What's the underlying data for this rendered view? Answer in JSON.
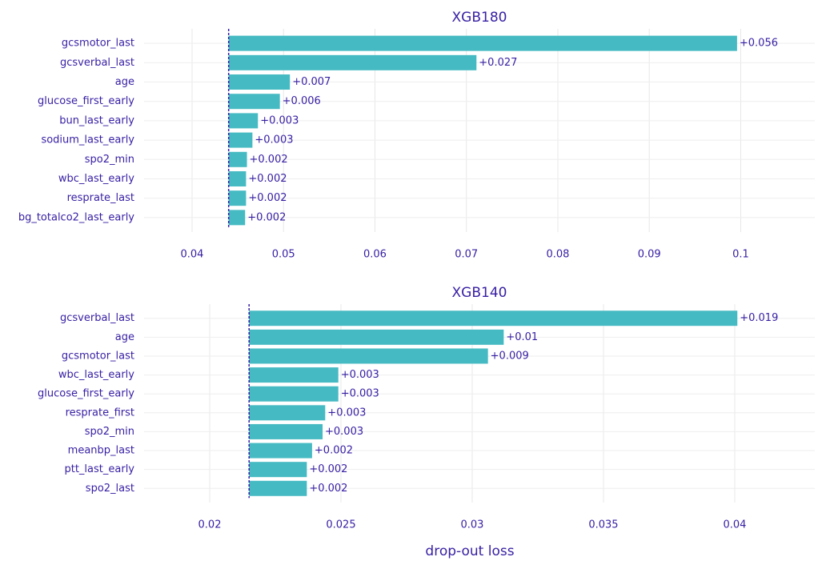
{
  "chart_data": [
    {
      "type": "bar",
      "title": "XGB180",
      "color": "#46bac2",
      "categories": [
        "gcsmotor_last",
        "gcsverbal_last",
        "age",
        "glucose_first_early",
        "bun_last_early",
        "sodium_last_early",
        "spo2_min",
        "wbc_last_early",
        "resprate_last",
        "bg_totalco2_last_early"
      ],
      "values": [
        0.0556,
        0.0271,
        0.0067,
        0.0056,
        0.0032,
        0.0026,
        0.002,
        0.0019,
        0.0019,
        0.0018
      ],
      "value_labels": [
        "+0.056",
        "+0.027",
        "+0.007",
        "+0.006",
        "+0.003",
        "+0.003",
        "+0.002",
        "+0.002",
        "+0.002",
        "+0.002"
      ],
      "baseline": 0.044,
      "xlim": [
        0.03475,
        0.1081
      ],
      "xticks": [
        0.04,
        0.05,
        0.06,
        0.07,
        0.08,
        0.09,
        0.1
      ],
      "grid": true
    },
    {
      "type": "bar",
      "title": "XGB140",
      "color": "#46bac2",
      "xlabel": "drop-out loss",
      "categories": [
        "gcsverbal_last",
        "age",
        "gcsmotor_last",
        "wbc_last_early",
        "glucose_first_early",
        "resprate_first",
        "spo2_min",
        "meanbp_last",
        "ptt_last_early",
        "spo2_last"
      ],
      "values": [
        0.0186,
        0.0097,
        0.0091,
        0.0034,
        0.0034,
        0.0029,
        0.0028,
        0.0024,
        0.0022,
        0.0022
      ],
      "value_labels": [
        "+0.019",
        "+0.01",
        "+0.009",
        "+0.003",
        "+0.003",
        "+0.003",
        "+0.003",
        "+0.002",
        "+0.002",
        "+0.002"
      ],
      "baseline": 0.0215,
      "xlim": [
        0.0175,
        0.04305
      ],
      "xticks": [
        0.02,
        0.025,
        0.03,
        0.035,
        0.04
      ],
      "grid": true
    }
  ]
}
